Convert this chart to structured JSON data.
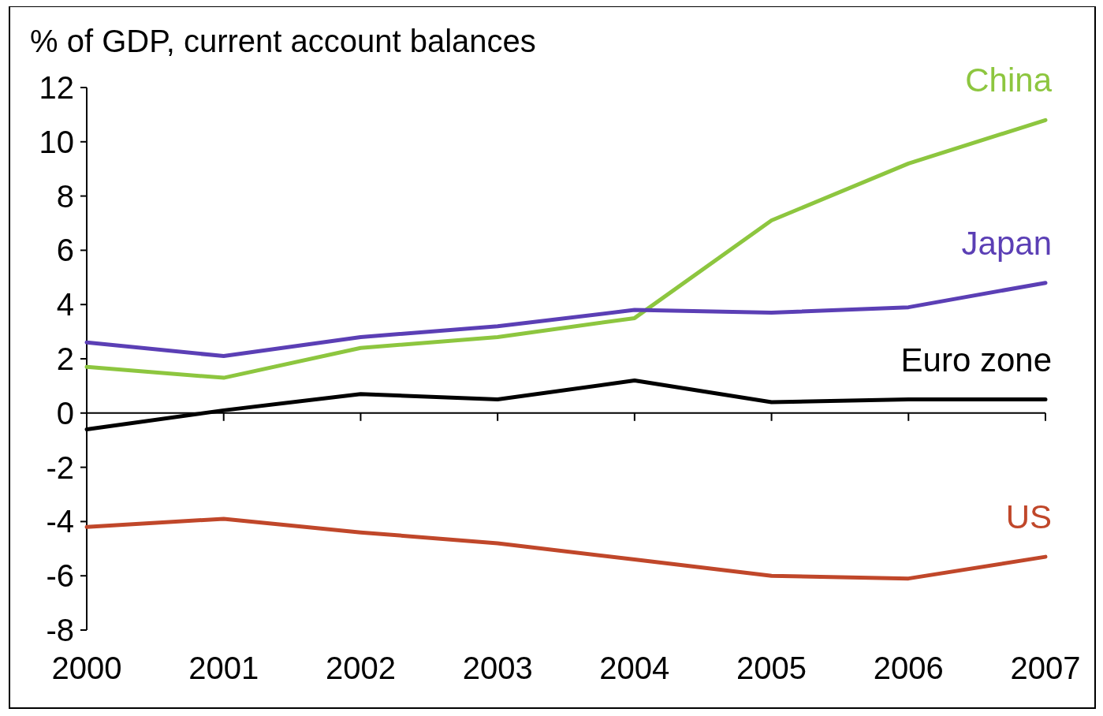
{
  "chart_data": {
    "type": "line",
    "title": "% of GDP, current account balances",
    "x": [
      2000,
      2001,
      2002,
      2003,
      2004,
      2005,
      2006,
      2007
    ],
    "xlim": [
      2000,
      2007
    ],
    "xticks": [
      2000,
      2001,
      2002,
      2003,
      2004,
      2005,
      2006,
      2007
    ],
    "ylim": [
      -8,
      12
    ],
    "yticks": [
      -8,
      -6,
      -4,
      -2,
      0,
      2,
      4,
      6,
      8,
      10,
      12
    ],
    "legend": false,
    "line_style": "solid",
    "marker": "none",
    "series": [
      {
        "name": "China",
        "color": "#8dc63f",
        "values": [
          1.7,
          1.3,
          2.4,
          2.8,
          3.5,
          7.1,
          9.2,
          10.8
        ]
      },
      {
        "name": "Japan",
        "color": "#5b3fb5",
        "values": [
          2.6,
          2.1,
          2.8,
          3.2,
          3.8,
          3.7,
          3.9,
          4.8
        ]
      },
      {
        "name": "Euro zone",
        "color": "#000000",
        "values": [
          -0.6,
          0.1,
          0.7,
          0.5,
          1.2,
          0.4,
          0.5,
          0.5
        ]
      },
      {
        "name": "US",
        "color": "#c0472a",
        "values": [
          -4.2,
          -3.9,
          -4.4,
          -4.8,
          -5.4,
          -6.0,
          -6.1,
          -5.3
        ]
      }
    ]
  }
}
